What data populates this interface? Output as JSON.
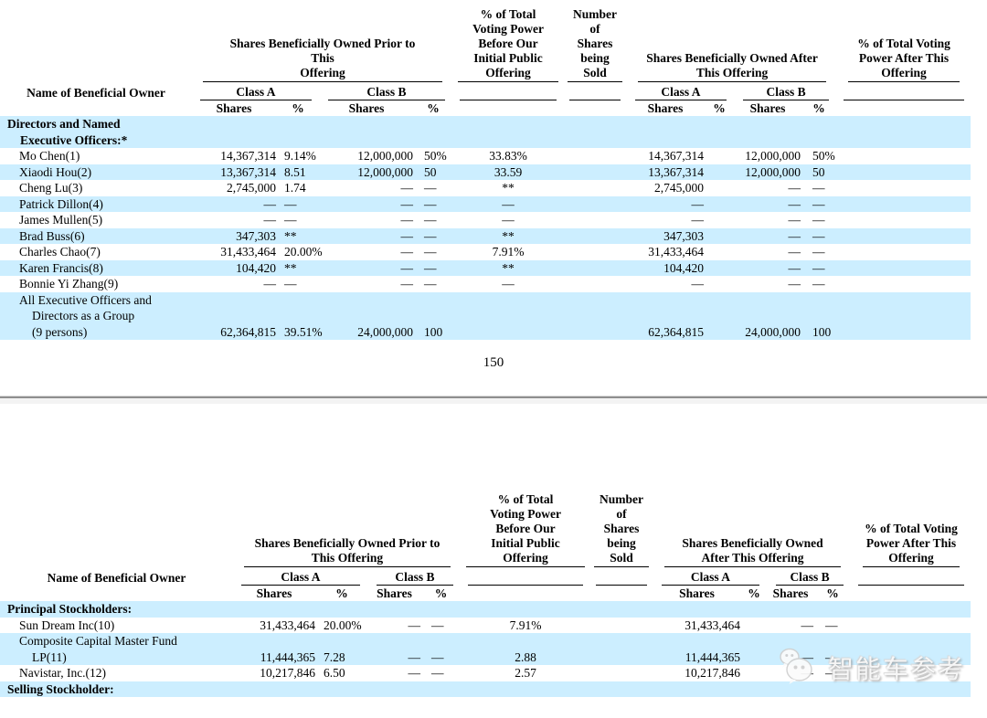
{
  "page": {
    "number": "150"
  },
  "watermark": {
    "text": "智能车参考",
    "icon": "wechat-chat-bubbles"
  },
  "colors": {
    "row_highlight": "#cceeff",
    "divider": "#8f8f8f",
    "text": "#000000"
  },
  "labels": {
    "name": "Name of Beneficial Owner",
    "class_a": "Class A",
    "class_b": "Class B",
    "shares": "Shares",
    "percent": "%"
  },
  "tables": [
    {
      "id": "t1",
      "headers": {
        "prior_group": "Shares Beneficially Owned Prior to\nThis\nOffering",
        "voting_before": "% of Total\nVoting Power\nBefore Our\nInitial Public\nOffering",
        "shares_sold": "Number of\nShares\nbeing Sold",
        "after_group": "Shares Beneficially Owned After\nThis Offering",
        "voting_after": "% of Total Voting\nPower After This\nOffering"
      },
      "rows": [
        {
          "bold": true,
          "highlight": true,
          "name_lines": [
            "Directors and Named",
            "Executive Officers:*"
          ],
          "cells": [
            "",
            "",
            "",
            "",
            "",
            "",
            "",
            "",
            "",
            "",
            ""
          ]
        },
        {
          "bold": false,
          "highlight": false,
          "name_lines": [
            "Mo Chen(1)"
          ],
          "cells": [
            "14,367,314",
            "9.14%",
            "12,000,000",
            "50%",
            "33.83%",
            "",
            "14,367,314",
            "",
            "12,000,000",
            "50%",
            ""
          ]
        },
        {
          "bold": false,
          "highlight": true,
          "name_lines": [
            "Xiaodi Hou(2)"
          ],
          "cells": [
            "13,367,314",
            "8.51",
            "12,000,000",
            "50",
            "33.59",
            "",
            "13,367,314",
            "",
            "12,000,000",
            "50",
            ""
          ]
        },
        {
          "bold": false,
          "highlight": false,
          "name_lines": [
            "Cheng Lu(3)"
          ],
          "cells": [
            "2,745,000",
            "1.74",
            "—",
            "—",
            "**",
            "",
            "2,745,000",
            "",
            "—",
            "—",
            ""
          ]
        },
        {
          "bold": false,
          "highlight": true,
          "name_lines": [
            "Patrick Dillon(4)"
          ],
          "cells": [
            "—",
            "—",
            "—",
            "—",
            "—",
            "",
            "—",
            "",
            "—",
            "—",
            ""
          ]
        },
        {
          "bold": false,
          "highlight": false,
          "name_lines": [
            "James Mullen(5)"
          ],
          "cells": [
            "—",
            "—",
            "—",
            "—",
            "—",
            "",
            "—",
            "",
            "—",
            "—",
            ""
          ]
        },
        {
          "bold": false,
          "highlight": true,
          "name_lines": [
            "Brad Buss(6)"
          ],
          "cells": [
            "347,303",
            "**",
            "—",
            "—",
            "**",
            "",
            "347,303",
            "",
            "—",
            "—",
            ""
          ]
        },
        {
          "bold": false,
          "highlight": false,
          "name_lines": [
            "Charles Chao(7)"
          ],
          "cells": [
            "31,433,464",
            "20.00%",
            "—",
            "—",
            "7.91%",
            "",
            "31,433,464",
            "",
            "—",
            "—",
            ""
          ]
        },
        {
          "bold": false,
          "highlight": true,
          "name_lines": [
            "Karen Francis(8)"
          ],
          "cells": [
            "104,420",
            "**",
            "—",
            "—",
            "**",
            "",
            "104,420",
            "",
            "—",
            "—",
            ""
          ]
        },
        {
          "bold": false,
          "highlight": false,
          "name_lines": [
            "Bonnie Yi Zhang(9)"
          ],
          "cells": [
            "—",
            "—",
            "—",
            "—",
            "—",
            "",
            "—",
            "",
            "—",
            "—",
            ""
          ]
        },
        {
          "bold": false,
          "highlight": true,
          "name_lines": [
            "All Executive Officers and",
            "Directors as a Group",
            "(9 persons)"
          ],
          "cells": [
            "62,364,815",
            "39.51%",
            "24,000,000",
            "100",
            "",
            "",
            "62,364,815",
            "",
            "24,000,000",
            "100",
            ""
          ]
        }
      ]
    },
    {
      "id": "t2",
      "headers": {
        "prior_group": "Shares Beneficially Owned Prior to\nThis Offering",
        "voting_before": "% of Total\nVoting Power\nBefore Our\nInitial Public\nOffering",
        "shares_sold": "Number of\nShares\nbeing Sold",
        "after_group": "Shares Beneficially Owned\nAfter This Offering",
        "voting_after": "% of Total Voting\nPower After This\nOffering"
      },
      "rows": [
        {
          "bold": true,
          "highlight": true,
          "name_lines": [
            "Principal Stockholders:"
          ],
          "cells": [
            "",
            "",
            "",
            "",
            "",
            "",
            "",
            "",
            "",
            "",
            ""
          ]
        },
        {
          "bold": false,
          "highlight": false,
          "name_lines": [
            "Sun Dream Inc(10)"
          ],
          "cells": [
            "31,433,464",
            "20.00%",
            "—",
            "—",
            "7.91%",
            "",
            "31,433,464",
            "",
            "—",
            "—",
            ""
          ]
        },
        {
          "bold": false,
          "highlight": true,
          "name_lines": [
            "Composite Capital Master Fund",
            "LP(11)"
          ],
          "cells": [
            "11,444,365",
            "7.28",
            "—",
            "—",
            "2.88",
            "",
            "11,444,365",
            "",
            "—",
            "—",
            ""
          ]
        },
        {
          "bold": false,
          "highlight": false,
          "name_lines": [
            "Navistar, Inc.(12)"
          ],
          "cells": [
            "10,217,846",
            "6.50",
            "—",
            "—",
            "2.57",
            "",
            "10,217,846",
            "",
            "—",
            "—",
            ""
          ]
        },
        {
          "bold": true,
          "highlight": true,
          "name_lines": [
            "Selling Stockholder:"
          ],
          "cells": [
            "",
            "",
            "",
            "",
            "",
            "",
            "",
            "",
            "",
            "",
            ""
          ]
        }
      ]
    }
  ]
}
